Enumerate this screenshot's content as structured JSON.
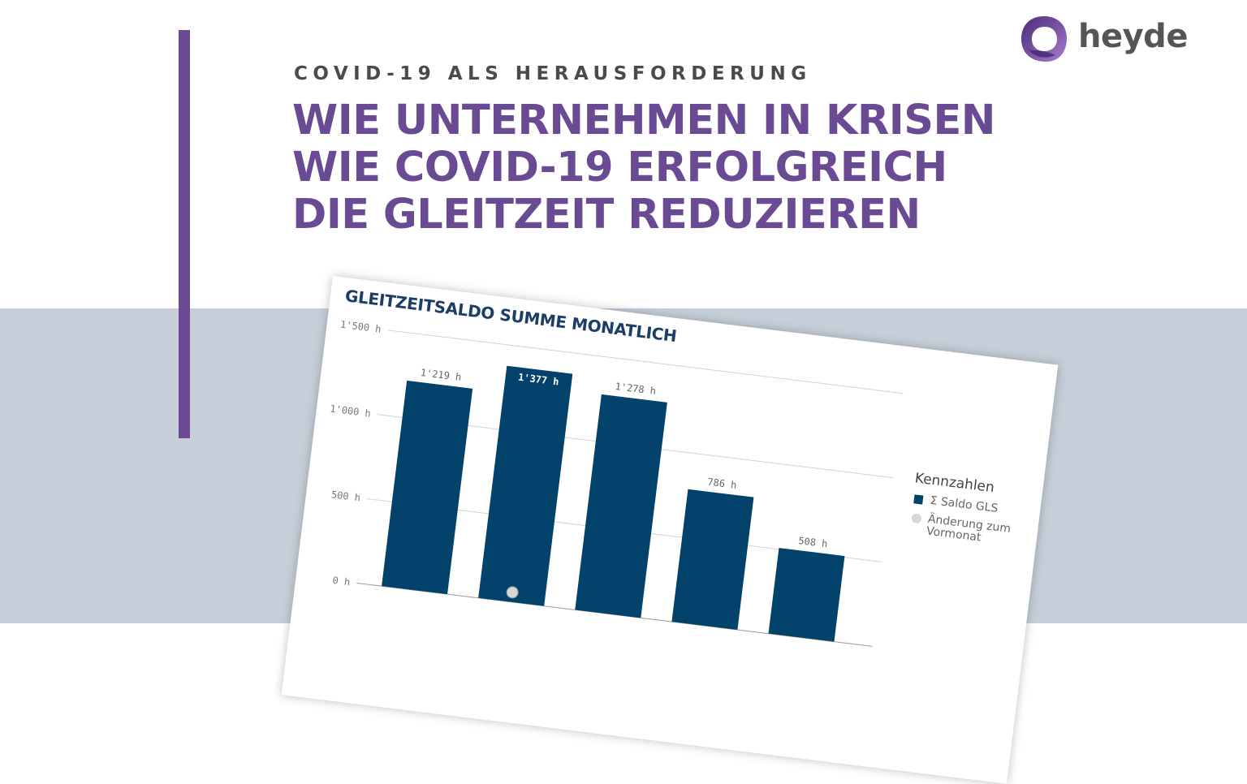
{
  "header": {
    "eyebrow": "COVID-19 ALS HERAUSFORDERUNG",
    "headline_lines": [
      "WIE UNTERNEHMEN IN KRISEN",
      "WIE COVID-19 ERFOLGREICH",
      "DIE GLEITZEIT REDUZIEREN"
    ]
  },
  "logo": {
    "text": "heyde",
    "mark_icon": "heyde-logo-mark-icon"
  },
  "colors": {
    "accent": "#6a4b93",
    "band": "#c6cfd9",
    "bar": "#03436b",
    "dot": "#d8d8d2",
    "logo_text": "#555555"
  },
  "chart_data": {
    "type": "bar",
    "title": "GLEITZEITSALDO SUMME MONATLICH",
    "y_ticks": [
      "1'500 h",
      "1'000 h",
      "500 h",
      "0 h"
    ],
    "y_tick_values": [
      1500,
      1000,
      500,
      0
    ],
    "ylim": [
      0,
      1500
    ],
    "grid": true,
    "legend_title": "Kennzahlen",
    "legend_position": "right",
    "series": [
      {
        "name": "Σ Saldo GLS",
        "values": [
          1219,
          1377,
          1278,
          786,
          508
        ],
        "labels": [
          "1'219 h",
          "1'377 h",
          "1'278 h",
          "786 h",
          "508 h"
        ]
      },
      {
        "name": "Änderung zum Vormonat",
        "type": "scatter",
        "values": [
          null,
          0,
          null,
          null,
          null
        ]
      }
    ]
  }
}
